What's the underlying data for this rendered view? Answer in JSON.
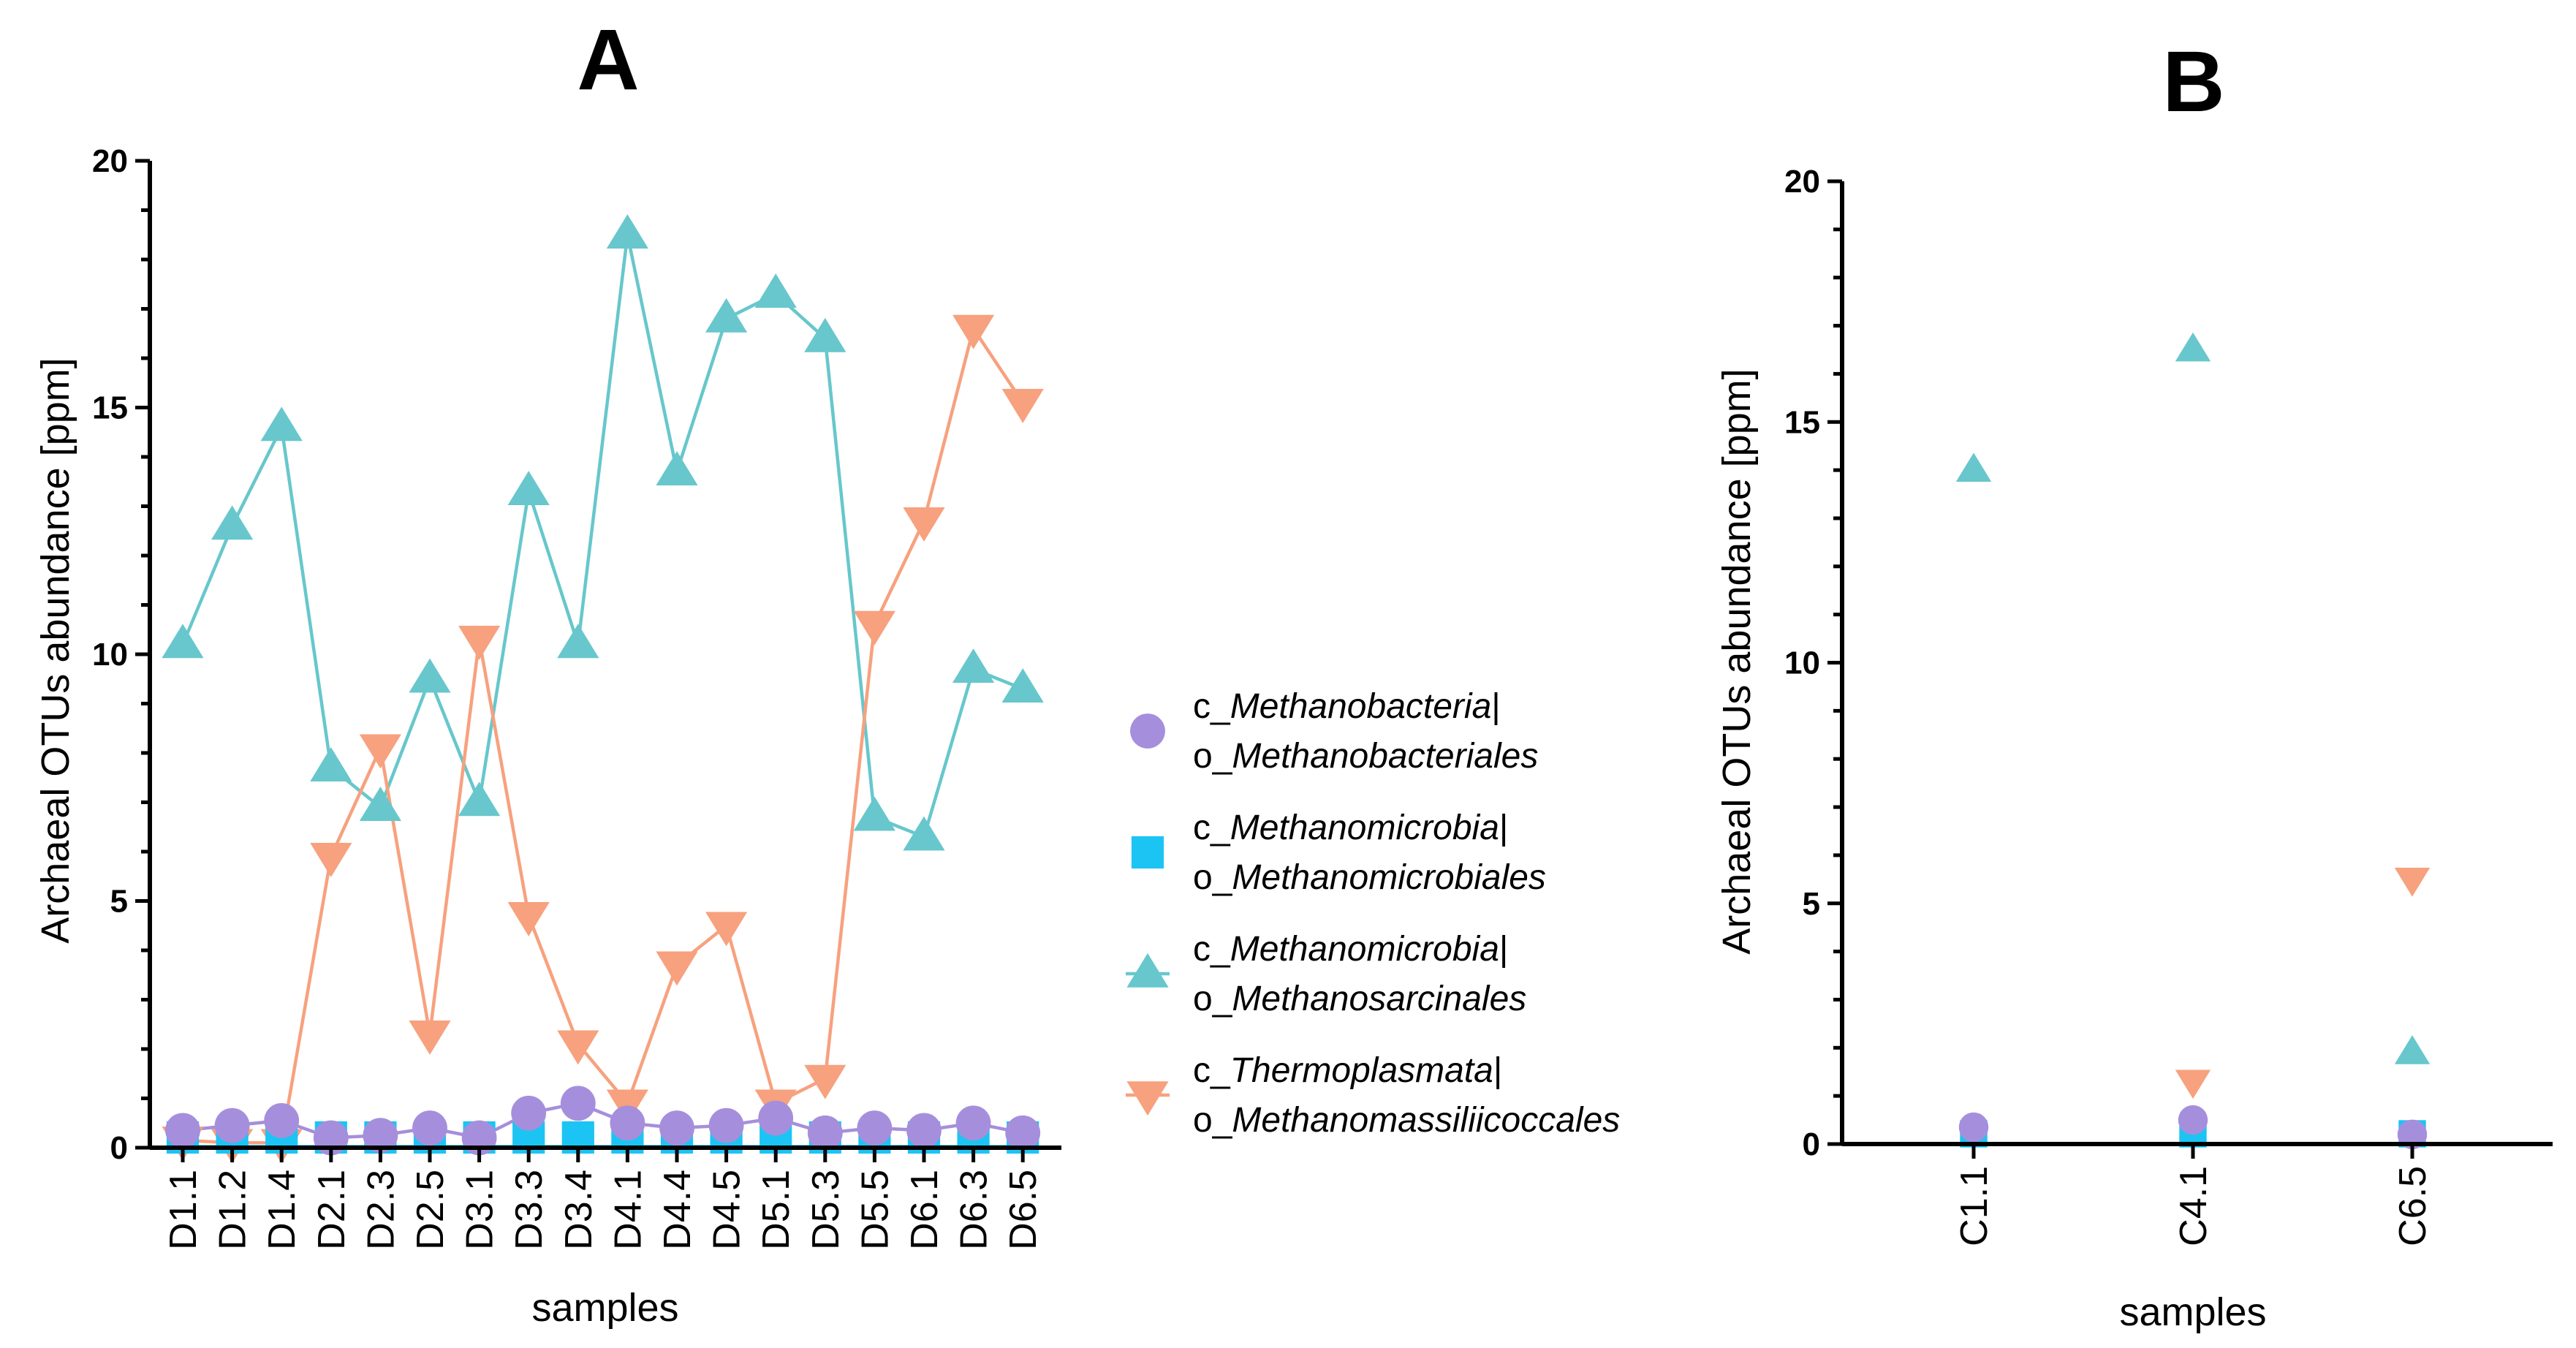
{
  "chart_data": [
    {
      "type": "line",
      "panel_label": "A",
      "xlabel": "samples",
      "ylabel": "Archaeal OTUs abundance [ppm]",
      "ylim": [
        0,
        20
      ],
      "yticks": [
        0,
        5,
        10,
        15,
        20
      ],
      "grid": false,
      "categories": [
        "D1.1",
        "D1.2",
        "D1.4",
        "D2.1",
        "D2.3",
        "D2.5",
        "D3.1",
        "D3.3",
        "D3.4",
        "D4.1",
        "D4.4",
        "D4.5",
        "D5.1",
        "D5.3",
        "D5.5",
        "D6.1",
        "D6.3",
        "D6.5"
      ],
      "series": [
        {
          "key": "s1",
          "values": [
            0.35,
            0.45,
            0.55,
            0.2,
            0.25,
            0.4,
            0.2,
            0.7,
            0.9,
            0.5,
            0.4,
            0.45,
            0.6,
            0.3,
            0.4,
            0.35,
            0.5,
            0.3
          ]
        },
        {
          "key": "s2",
          "values": [
            0.02,
            0.02,
            0.02,
            0.02,
            0.02,
            0.02,
            0.02,
            0.02,
            0.02,
            0.02,
            0.02,
            0.02,
            0.02,
            0.02,
            0.02,
            0.02,
            0.02,
            0.02
          ]
        },
        {
          "key": "s3",
          "values": [
            10.2,
            12.6,
            14.6,
            7.7,
            6.9,
            9.5,
            7.0,
            13.3,
            10.2,
            18.5,
            13.7,
            16.8,
            17.3,
            16.4,
            6.7,
            6.3,
            9.7,
            9.3
          ]
        },
        {
          "key": "s4",
          "values": [
            0.15,
            0.1,
            0.1,
            5.9,
            8.1,
            2.3,
            10.3,
            4.7,
            2.1,
            0.9,
            3.7,
            4.5,
            0.9,
            1.4,
            10.6,
            12.7,
            16.6,
            15.1
          ]
        }
      ]
    },
    {
      "type": "scatter",
      "panel_label": "B",
      "xlabel": "samples",
      "ylabel": "Archaeal OTUs abundance [ppm]",
      "ylim": [
        0,
        20
      ],
      "yticks": [
        0,
        5,
        10,
        15,
        20
      ],
      "grid": false,
      "categories": [
        "C1.1",
        "C4.1",
        "C6.5"
      ],
      "series": [
        {
          "key": "s1",
          "values": [
            0.35,
            0.5,
            0.2
          ]
        },
        {
          "key": "s2",
          "values": [
            0.02,
            0.02,
            0.02
          ]
        },
        {
          "key": "s3",
          "values": [
            14.0,
            16.5,
            1.9
          ]
        },
        {
          "key": "s4",
          "values": [
            null,
            1.3,
            5.5
          ]
        }
      ]
    }
  ],
  "legend": {
    "placement": "right-of-panel-A",
    "items": [
      {
        "key": "s1",
        "marker": "circle",
        "color": "#a58fdc",
        "line1_prefix": "c_",
        "line1_italic": "Methanobacteria",
        "line1_suffix": "|",
        "line2_prefix": "o_",
        "line2_italic": "Methanobacteriales"
      },
      {
        "key": "s2",
        "marker": "square",
        "color": "#1cc4f4",
        "line1_prefix": "c_",
        "line1_italic": "Methanomicrobia",
        "line1_suffix": "|",
        "line2_prefix": "o_",
        "line2_italic": "Methanomicrobiales"
      },
      {
        "key": "s3",
        "marker": "triangle-up",
        "color": "#67c7cc",
        "line1_prefix": "c_",
        "line1_italic": "Methanomicrobia",
        "line1_suffix": "|",
        "line2_prefix": "o_",
        "line2_italic": "Methanosarcinales"
      },
      {
        "key": "s4",
        "marker": "triangle-down",
        "color": "#f7a17e",
        "line1_prefix": "c_",
        "line1_italic": "Thermoplasmata",
        "line1_suffix": "|",
        "line2_prefix": "o_",
        "line2_italic": "Methanomassiliicoccales"
      }
    ]
  }
}
